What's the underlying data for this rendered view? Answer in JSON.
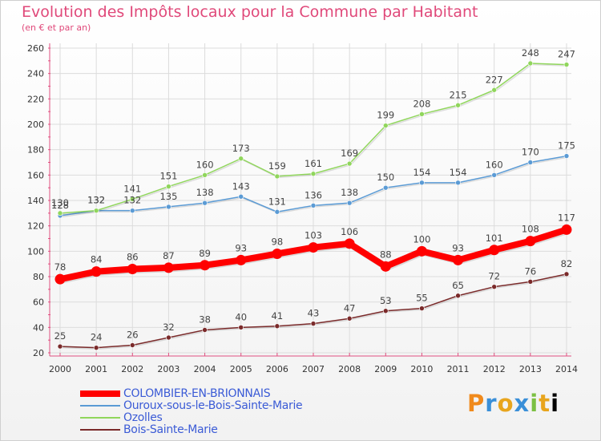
{
  "header": {
    "title": "Evolution des Impôts locaux pour la Commune par Habitant",
    "subtitle": "(en € et par an)"
  },
  "logo": {
    "text": "Proxiti"
  },
  "chart_data": {
    "type": "line",
    "title": "Evolution des Impôts locaux pour la Commune par Habitant",
    "subtitle": "(en € et par an)",
    "xlabel": "",
    "ylabel": "",
    "x": [
      "2000",
      "2001",
      "2002",
      "2003",
      "2004",
      "2005",
      "2006",
      "2007",
      "2008",
      "2009",
      "2010",
      "2011",
      "2012",
      "2013",
      "2014"
    ],
    "ylim": [
      20,
      260
    ],
    "yticks": [
      20,
      40,
      60,
      80,
      100,
      120,
      140,
      160,
      180,
      200,
      220,
      240,
      260
    ],
    "grid": true,
    "legend": "bottom-left",
    "series": [
      {
        "name": "COLOMBIER-EN-BRIONNAIS",
        "color": "#ff0000",
        "label_color": "#3b5bd6",
        "emphasis": true,
        "values": [
          78,
          84,
          86,
          87,
          89,
          93,
          98,
          103,
          106,
          88,
          100,
          93,
          101,
          108,
          117
        ]
      },
      {
        "name": "Ouroux-sous-le-Bois-Sainte-Marie",
        "color": "#5b9bd5",
        "label_color": "#3b5bd6",
        "emphasis": false,
        "values": [
          128,
          132,
          132,
          135,
          138,
          143,
          131,
          136,
          138,
          150,
          154,
          154,
          160,
          170,
          175
        ]
      },
      {
        "name": "Ozolles",
        "color": "#90d65c",
        "label_color": "#3b5bd6",
        "emphasis": false,
        "values": [
          130,
          132,
          141,
          151,
          160,
          173,
          159,
          161,
          169,
          199,
          208,
          215,
          227,
          248,
          247
        ]
      },
      {
        "name": "Bois-Sainte-Marie",
        "color": "#7a2a2a",
        "label_color": "#3b5bd6",
        "emphasis": false,
        "values": [
          25,
          24,
          26,
          32,
          38,
          40,
          41,
          43,
          47,
          53,
          55,
          65,
          72,
          76,
          82
        ]
      }
    ]
  }
}
